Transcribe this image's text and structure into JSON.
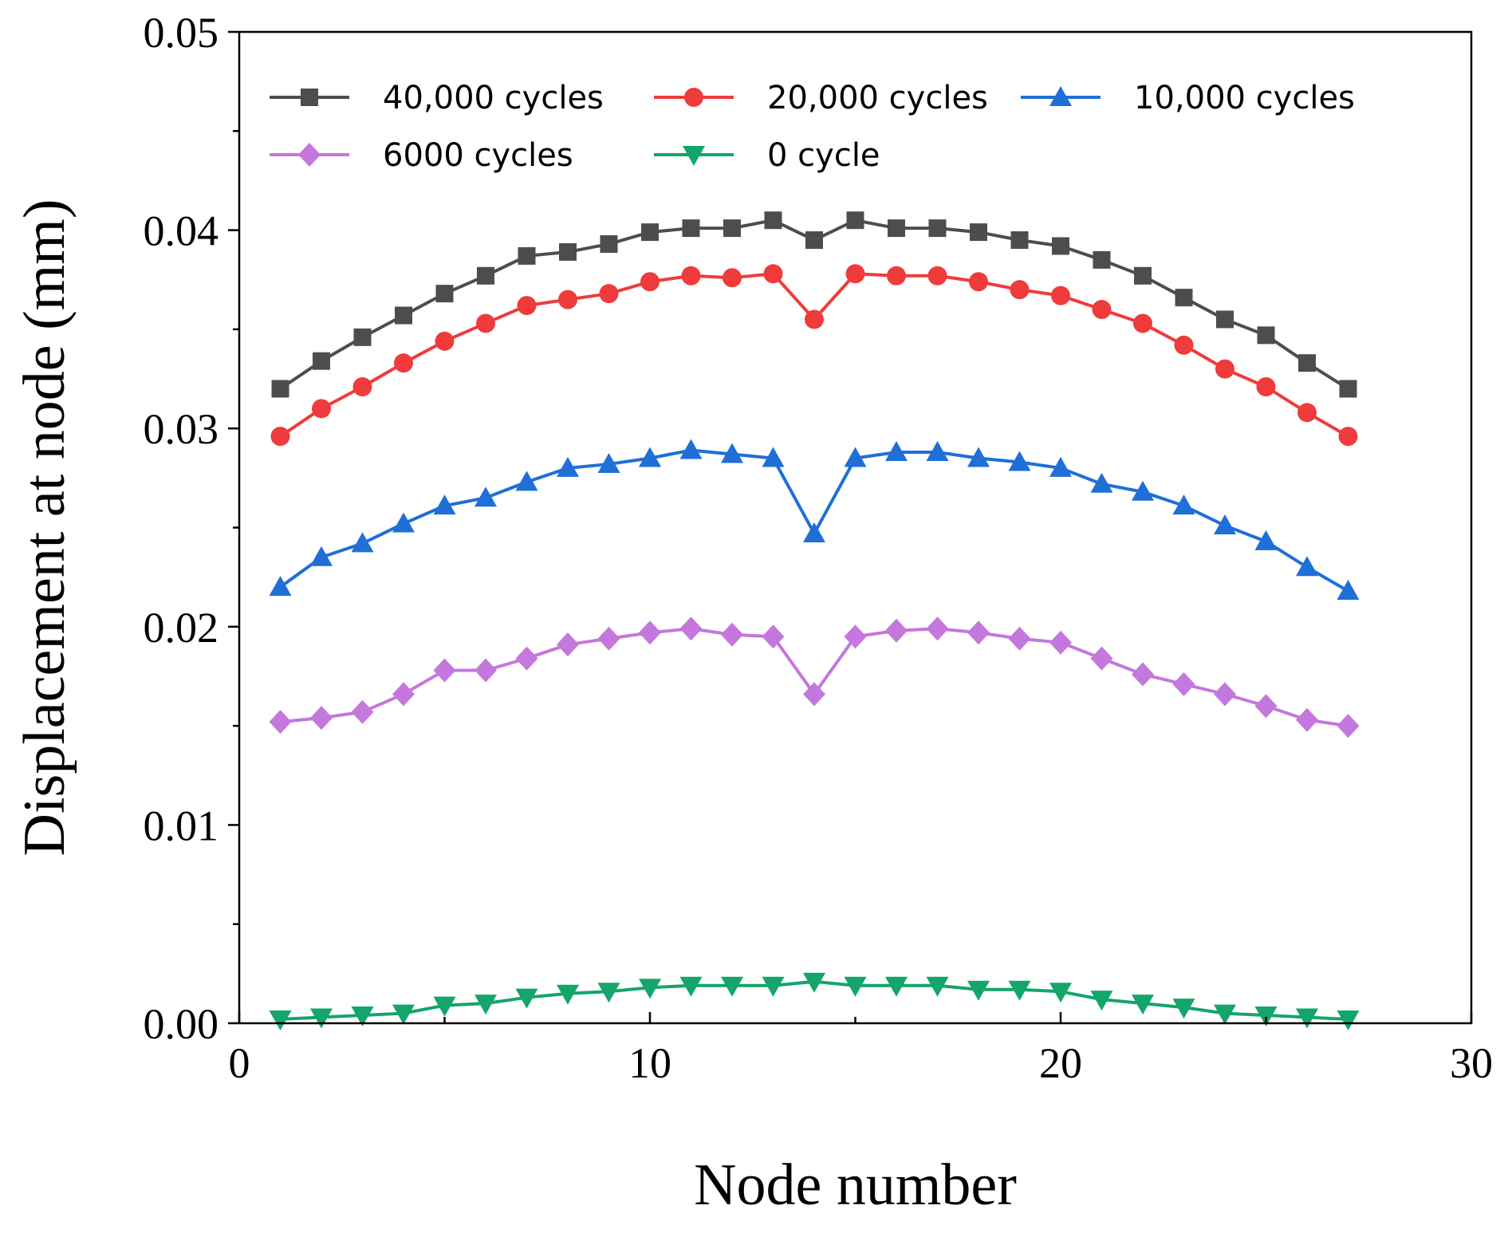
{
  "chart_data": {
    "type": "line",
    "title": "",
    "xlabel": "Node number",
    "ylabel": "Displacement at node (mm)",
    "xlim": [
      0,
      30
    ],
    "ylim": [
      0,
      0.05
    ],
    "x_ticks": [
      0,
      10,
      20,
      30
    ],
    "x_tick_labels": [
      "0",
      "10",
      "20",
      "30"
    ],
    "y_ticks": [
      0,
      0.01,
      0.02,
      0.03,
      0.04,
      0.05
    ],
    "y_tick_labels": [
      "0.00",
      "0.01",
      "0.02",
      "0.03",
      "0.04",
      "0.05"
    ],
    "grid": false,
    "legend_position": "top",
    "x": [
      1,
      2,
      3,
      4,
      5,
      6,
      7,
      8,
      9,
      10,
      11,
      12,
      13,
      14,
      15,
      16,
      17,
      18,
      19,
      20,
      21,
      22,
      23,
      24,
      25,
      26,
      27
    ],
    "series": [
      {
        "name": "40,000 cycles",
        "color": "#4d4d4d",
        "marker": "square",
        "values": [
          0.032,
          0.0334,
          0.0346,
          0.0357,
          0.0368,
          0.0377,
          0.0387,
          0.0389,
          0.0393,
          0.0399,
          0.0401,
          0.0401,
          0.0405,
          0.0395,
          0.0405,
          0.0401,
          0.0401,
          0.0399,
          0.0395,
          0.0392,
          0.0385,
          0.0377,
          0.0366,
          0.0355,
          0.0347,
          0.0333,
          0.032
        ]
      },
      {
        "name": "20,000 cycles",
        "color": "#ef3b3b",
        "marker": "circle",
        "values": [
          0.0296,
          0.031,
          0.0321,
          0.0333,
          0.0344,
          0.0353,
          0.0362,
          0.0365,
          0.0368,
          0.0374,
          0.0377,
          0.0376,
          0.0378,
          0.0355,
          0.0378,
          0.0377,
          0.0377,
          0.0374,
          0.037,
          0.0367,
          0.036,
          0.0353,
          0.0342,
          0.033,
          0.0321,
          0.0308,
          0.0296
        ]
      },
      {
        "name": "10,000 cycles",
        "color": "#1f6fd6",
        "marker": "triangle-up",
        "values": [
          0.022,
          0.0235,
          0.0242,
          0.0252,
          0.0261,
          0.0265,
          0.0273,
          0.028,
          0.0282,
          0.0285,
          0.0289,
          0.0287,
          0.0285,
          0.0247,
          0.0285,
          0.0288,
          0.0288,
          0.0285,
          0.0283,
          0.028,
          0.0272,
          0.0268,
          0.0261,
          0.0251,
          0.0243,
          0.023,
          0.0218
        ]
      },
      {
        "name": "6000 cycles",
        "color": "#c477dc",
        "marker": "diamond",
        "values": [
          0.0152,
          0.0154,
          0.0157,
          0.0166,
          0.0178,
          0.0178,
          0.0184,
          0.0191,
          0.0194,
          0.0197,
          0.0199,
          0.0196,
          0.0195,
          0.0166,
          0.0195,
          0.0198,
          0.0199,
          0.0197,
          0.0194,
          0.0192,
          0.0184,
          0.0176,
          0.0171,
          0.0166,
          0.016,
          0.0153,
          0.015
        ]
      },
      {
        "name": "0 cycle",
        "color": "#13a56a",
        "marker": "triangle-down",
        "values": [
          0.0002,
          0.0003,
          0.0004,
          0.0005,
          0.0009,
          0.001,
          0.0013,
          0.0015,
          0.0016,
          0.0018,
          0.0019,
          0.0019,
          0.0019,
          0.0021,
          0.0019,
          0.0019,
          0.0019,
          0.0017,
          0.0017,
          0.0016,
          0.0012,
          0.001,
          0.0008,
          0.0005,
          0.0004,
          0.0003,
          0.0002
        ]
      }
    ]
  }
}
